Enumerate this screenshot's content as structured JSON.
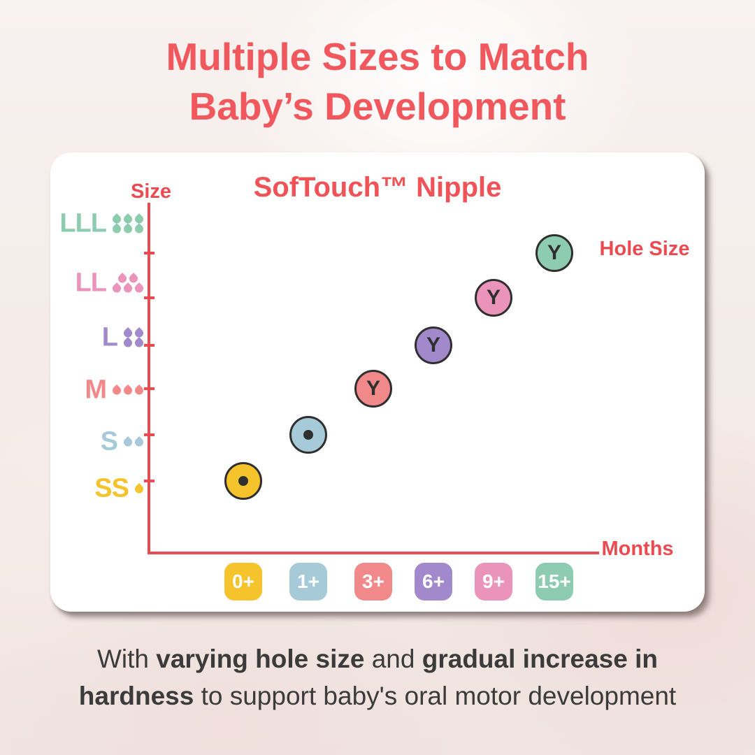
{
  "header": {
    "title_line1": "Multiple Sizes to Match",
    "title_line2": "Baby’s Development"
  },
  "chart_data": {
    "type": "scatter",
    "title": "SofTouch™ Nipple",
    "xlabel": "Months",
    "ylabel": "Size",
    "annotation": "Hole Size",
    "x_categories": [
      "0+",
      "1+",
      "3+",
      "6+",
      "9+",
      "15+"
    ],
    "y_categories": [
      "SS",
      "S",
      "M",
      "L",
      "LL",
      "LLL"
    ],
    "grid": "dashed leader lines from axis to each point, color-coded per size",
    "legend_position": "right-top annotation",
    "points": [
      {
        "size": "SS",
        "age_months": "0+",
        "flow_droplets": 1,
        "droplet_rows": [
          1
        ],
        "hole_type": "round-hole",
        "hole_mark": "",
        "color": "#f5c42c"
      },
      {
        "size": "S",
        "age_months": "1+",
        "flow_droplets": 2,
        "droplet_rows": [
          2
        ],
        "hole_type": "round-hole",
        "hole_mark": "",
        "color": "#a6cad8"
      },
      {
        "size": "M",
        "age_months": "3+",
        "flow_droplets": 3,
        "droplet_rows": [
          3
        ],
        "hole_type": "y-cut",
        "hole_mark": "Y",
        "color": "#f1888a"
      },
      {
        "size": "L",
        "age_months": "6+",
        "flow_droplets": 4,
        "droplet_rows": [
          2,
          2
        ],
        "hole_type": "y-cut",
        "hole_mark": "Y",
        "color": "#a189cb"
      },
      {
        "size": "LL",
        "age_months": "9+",
        "flow_droplets": 5,
        "droplet_rows": [
          2,
          3
        ],
        "hole_type": "y-cut",
        "hole_mark": "Y",
        "color": "#eb94bb"
      },
      {
        "size": "LLL",
        "age_months": "15+",
        "flow_droplets": 6,
        "droplet_rows": [
          3,
          3
        ],
        "hole_type": "y-cut",
        "hole_mark": "Y",
        "color": "#8dccb0"
      }
    ]
  },
  "caption": {
    "part1": "With ",
    "part2": "varying hole size",
    "part3": " and ",
    "part4": "gradual increase in",
    "part5": "hardness",
    "part6": " to support baby's oral motor development"
  },
  "colors": {
    "accent_red": "#ef5358",
    "axis_red": "#ea4b51",
    "text_dark": "#3b3b3b",
    "card_background": "#ffffff"
  }
}
